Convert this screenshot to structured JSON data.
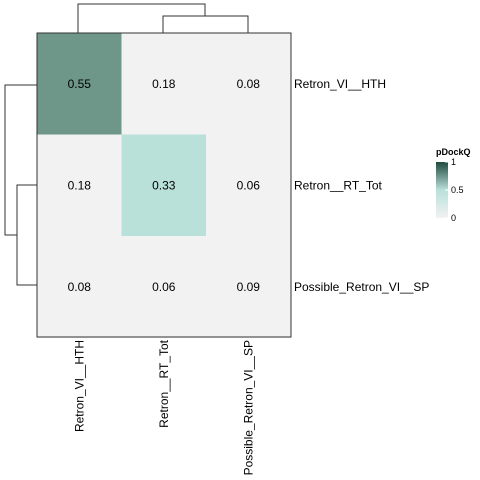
{
  "chart_data": {
    "type": "heatmap",
    "title": "",
    "rows": [
      "Retron_VI__HTH",
      "Retron__RT_Tot",
      "Possible_Retron_VI__SP"
    ],
    "columns": [
      "Retron_VI__HTH",
      "Retron__RT_Tot",
      "Possible_Retron_VI__SP"
    ],
    "values": [
      [
        0.55,
        0.18,
        0.08
      ],
      [
        0.18,
        0.33,
        0.06
      ],
      [
        0.08,
        0.06,
        0.09
      ]
    ],
    "cell_labels": [
      [
        "0.55",
        "0.18",
        "0.08"
      ],
      [
        "0.18",
        "0.33",
        "0.06"
      ],
      [
        "0.08",
        "0.06",
        "0.09"
      ]
    ],
    "threshold_note": "cells below the low threshold are drawn in the base grey",
    "color_scale": {
      "low": "#f2f2f2",
      "high": "#1f4a3f",
      "cell_colors": [
        [
          "#6e978a",
          "#f2f2f2",
          "#f2f2f2"
        ],
        [
          "#f2f2f2",
          "#b9e0d9",
          "#f2f2f2"
        ],
        [
          "#f2f2f2",
          "#f2f2f2",
          "#f2f2f2"
        ]
      ]
    },
    "legend": {
      "title": "pDockQ",
      "ticks": [
        "1",
        "0.5",
        "0"
      ],
      "tick_values": [
        1,
        0.5,
        0
      ],
      "placement": "right"
    },
    "dendrogram": {
      "row_merges": "Retron__RT_Tot + Possible_Retron_VI__SP, then + Retron_VI__HTH",
      "col_merges": "Retron__RT_Tot + Possible_Retron_VI__SP, then + Retron_VI__HTH"
    }
  }
}
